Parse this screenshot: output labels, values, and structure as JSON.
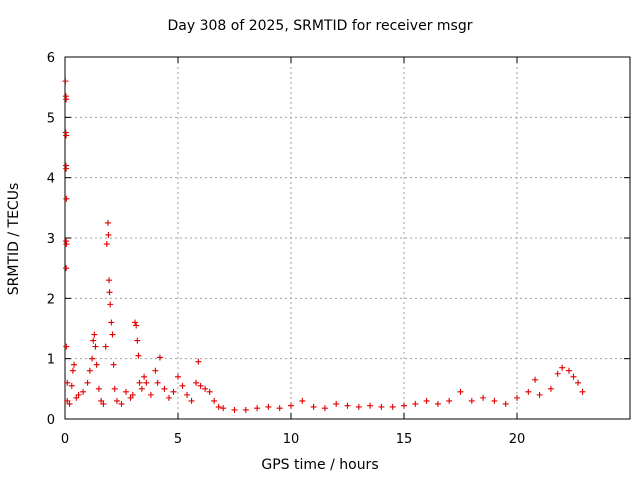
{
  "chart_data": {
    "type": "scatter",
    "title": "Day 308 of 2025, SRMTID for receiver msgr",
    "xlabel": "GPS time / hours",
    "ylabel": "SRMTID / TECUs",
    "xlim": [
      0,
      25
    ],
    "ylim": [
      0,
      6
    ],
    "x_ticks": [
      0,
      5,
      10,
      15,
      20
    ],
    "y_ticks": [
      0,
      1,
      2,
      3,
      4,
      5,
      6
    ],
    "grid": true,
    "marker": "+",
    "series": [
      {
        "name": "SRMTID",
        "color": "#e00000",
        "points": [
          [
            0.02,
            5.6
          ],
          [
            0.04,
            5.35
          ],
          [
            0.05,
            5.3
          ],
          [
            0.03,
            4.75
          ],
          [
            0.05,
            4.7
          ],
          [
            0.04,
            4.2
          ],
          [
            0.05,
            4.15
          ],
          [
            0.06,
            3.65
          ],
          [
            0.05,
            2.95
          ],
          [
            0.06,
            2.9
          ],
          [
            0.05,
            2.5
          ],
          [
            0.06,
            1.2
          ],
          [
            0.1,
            0.6
          ],
          [
            0.1,
            0.3
          ],
          [
            0.2,
            0.25
          ],
          [
            0.3,
            0.55
          ],
          [
            0.35,
            0.8
          ],
          [
            0.4,
            0.9
          ],
          [
            0.5,
            0.35
          ],
          [
            0.6,
            0.4
          ],
          [
            0.8,
            0.45
          ],
          [
            1.0,
            0.6
          ],
          [
            1.1,
            0.8
          ],
          [
            1.2,
            1.0
          ],
          [
            1.25,
            1.3
          ],
          [
            1.3,
            1.4
          ],
          [
            1.35,
            1.2
          ],
          [
            1.4,
            0.9
          ],
          [
            1.5,
            0.5
          ],
          [
            1.6,
            0.3
          ],
          [
            1.7,
            0.25
          ],
          [
            1.8,
            1.2
          ],
          [
            1.85,
            2.9
          ],
          [
            1.9,
            3.25
          ],
          [
            1.92,
            3.05
          ],
          [
            1.95,
            2.3
          ],
          [
            1.97,
            2.1
          ],
          [
            2.0,
            1.9
          ],
          [
            2.05,
            1.6
          ],
          [
            2.1,
            1.4
          ],
          [
            2.15,
            0.9
          ],
          [
            2.2,
            0.5
          ],
          [
            2.3,
            0.3
          ],
          [
            2.5,
            0.25
          ],
          [
            2.7,
            0.45
          ],
          [
            2.9,
            0.35
          ],
          [
            3.0,
            0.4
          ],
          [
            3.1,
            1.6
          ],
          [
            3.15,
            1.55
          ],
          [
            3.2,
            1.3
          ],
          [
            3.25,
            1.05
          ],
          [
            3.3,
            0.6
          ],
          [
            3.4,
            0.5
          ],
          [
            3.5,
            0.7
          ],
          [
            3.6,
            0.6
          ],
          [
            3.8,
            0.4
          ],
          [
            4.0,
            0.8
          ],
          [
            4.1,
            0.6
          ],
          [
            4.2,
            1.02
          ],
          [
            4.4,
            0.5
          ],
          [
            4.6,
            0.35
          ],
          [
            4.8,
            0.45
          ],
          [
            5.0,
            0.7
          ],
          [
            5.2,
            0.55
          ],
          [
            5.4,
            0.4
          ],
          [
            5.6,
            0.3
          ],
          [
            5.8,
            0.6
          ],
          [
            5.9,
            0.95
          ],
          [
            6.0,
            0.55
          ],
          [
            6.2,
            0.5
          ],
          [
            6.4,
            0.45
          ],
          [
            6.6,
            0.3
          ],
          [
            6.8,
            0.2
          ],
          [
            7.0,
            0.18
          ],
          [
            7.5,
            0.15
          ],
          [
            8.0,
            0.15
          ],
          [
            8.5,
            0.18
          ],
          [
            9.0,
            0.2
          ],
          [
            9.5,
            0.18
          ],
          [
            10.0,
            0.22
          ],
          [
            10.5,
            0.3
          ],
          [
            11.0,
            0.2
          ],
          [
            11.5,
            0.18
          ],
          [
            12.0,
            0.25
          ],
          [
            12.5,
            0.22
          ],
          [
            13.0,
            0.2
          ],
          [
            13.5,
            0.22
          ],
          [
            14.0,
            0.2
          ],
          [
            14.5,
            0.2
          ],
          [
            15.0,
            0.22
          ],
          [
            15.5,
            0.25
          ],
          [
            16.0,
            0.3
          ],
          [
            16.5,
            0.25
          ],
          [
            17.0,
            0.3
          ],
          [
            17.5,
            0.45
          ],
          [
            18.0,
            0.3
          ],
          [
            18.5,
            0.35
          ],
          [
            19.0,
            0.3
          ],
          [
            19.5,
            0.25
          ],
          [
            20.0,
            0.35
          ],
          [
            20.5,
            0.45
          ],
          [
            20.8,
            0.65
          ],
          [
            21.0,
            0.4
          ],
          [
            21.5,
            0.5
          ],
          [
            21.8,
            0.75
          ],
          [
            22.0,
            0.85
          ],
          [
            22.3,
            0.8
          ],
          [
            22.5,
            0.7
          ],
          [
            22.7,
            0.6
          ],
          [
            22.9,
            0.45
          ]
        ]
      }
    ]
  }
}
